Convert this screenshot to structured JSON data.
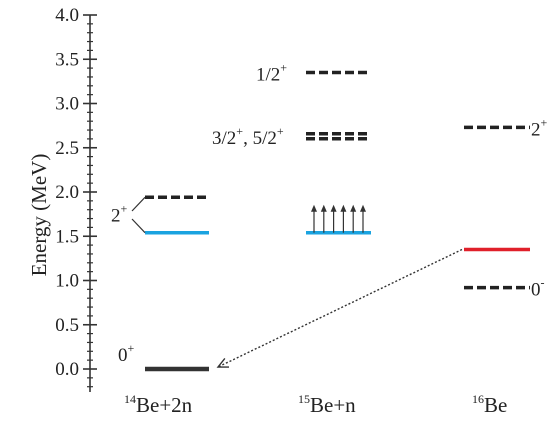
{
  "chart_data": {
    "type": "level-scheme",
    "ylabel": "Energy (MeV)",
    "ylim": [
      0,
      4.0
    ],
    "yticks": [
      {
        "v": 0.0,
        "label": "0.0"
      },
      {
        "v": 0.5,
        "label": "0.5"
      },
      {
        "v": 1.0,
        "label": "1.0"
      },
      {
        "v": 1.5,
        "label": "1.5"
      },
      {
        "v": 2.0,
        "label": "2.0"
      },
      {
        "v": 2.5,
        "label": "2.5"
      },
      {
        "v": 3.0,
        "label": "3.0"
      },
      {
        "v": 3.5,
        "label": "3.5"
      },
      {
        "v": 4.0,
        "label": "4.0"
      }
    ],
    "categories": [
      {
        "id": "be14",
        "mass": "14",
        "label": "Be+2n"
      },
      {
        "id": "be15",
        "mass": "15",
        "label": "Be+n"
      },
      {
        "id": "be16",
        "mass": "16",
        "label": "Be"
      }
    ],
    "levels": [
      {
        "id": "be14-gs",
        "column": "be14",
        "energy": 0.0,
        "style": "solid",
        "color": "#333333",
        "label": "0",
        "label_sup": "+"
      },
      {
        "id": "be14-threshold",
        "column": "be14",
        "energy": 1.54,
        "style": "solid",
        "color": "#1aa3e0"
      },
      {
        "id": "be14-2plus",
        "column": "be14",
        "energy": 1.94,
        "style": "dashed",
        "color": "#222222",
        "label": "2",
        "label_sup": "+"
      },
      {
        "id": "be15-threshold",
        "column": "be15",
        "energy": 1.54,
        "style": "solid",
        "color": "#1aa3e0",
        "arrows": 6
      },
      {
        "id": "be15-3-5",
        "column": "be15",
        "energy": 2.63,
        "style": "dashed",
        "color": "#222222",
        "label": "3/2",
        "label_sup": "+",
        "label2": ", 5/2",
        "label2_sup": "+",
        "double": true
      },
      {
        "id": "be15-half",
        "column": "be15",
        "energy": 3.35,
        "style": "dashed",
        "color": "#222222",
        "label": "1/2",
        "label_sup": "+"
      },
      {
        "id": "be16-gs",
        "column": "be16",
        "energy": 1.35,
        "style": "solid",
        "color": "#e0202a"
      },
      {
        "id": "be16-2plus",
        "column": "be16",
        "energy": 2.73,
        "style": "dashed",
        "color": "#222222",
        "label": "2",
        "label_sup": "+"
      },
      {
        "id": "be16-0",
        "column": "be16",
        "energy": 0.92,
        "style": "dashed",
        "color": "#222222",
        "label": "0",
        "label_sup": "-"
      }
    ],
    "decay": {
      "from": "be16-gs",
      "to": "be14-gs",
      "style": "dotted"
    }
  }
}
